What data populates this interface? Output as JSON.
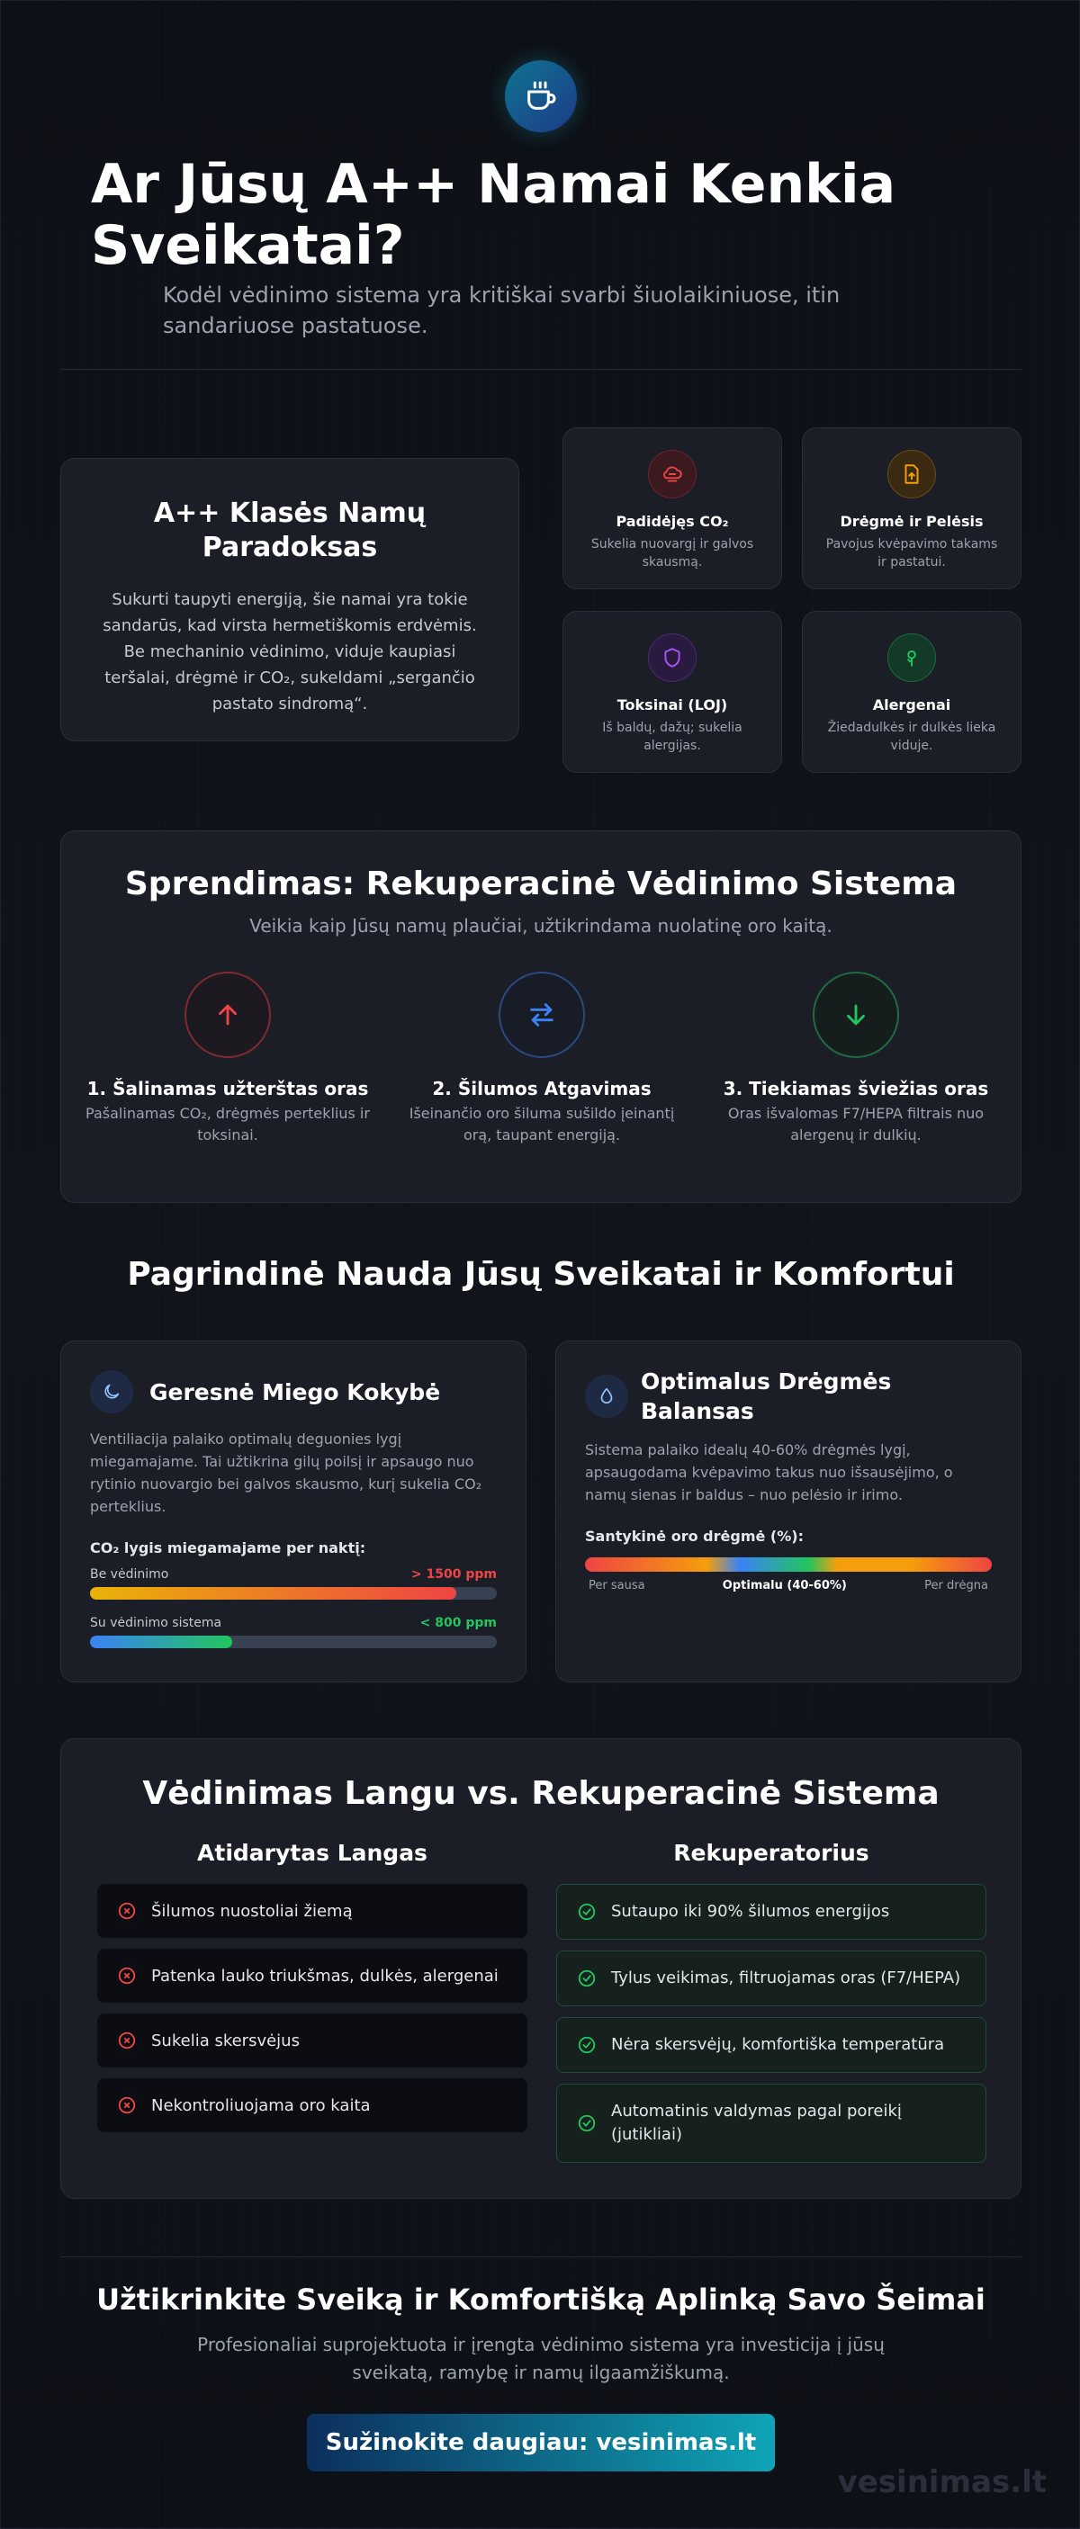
{
  "hero": {
    "title": "Ar Jūsų A++ Namai Kenkia Sveikatai?",
    "subtitle": "Kodėl vėdinimo sistema yra kritiškai svarbi šiuolaikiniuose, itin sandariuose pastatuose."
  },
  "paradox": {
    "title": "A++ Klasės Namų Paradoksas",
    "text": "Sukurti taupyti energiją, šie namai yra tokie sandarūs, kad virsta hermetiškomis erdvėmis. Be mechaninio vėdinimo, viduje kaupiasi teršalai, drėgmė ir CO₂, sukeldami „sergančio pastato sindromą“."
  },
  "problems": [
    {
      "title": "Padidėjęs CO₂",
      "desc": "Sukelia nuovargį ir galvos skausmą.",
      "icon": "co2-cloud-icon",
      "color": "#ef4444"
    },
    {
      "title": "Drėgmė ir Pelėsis",
      "desc": "Pavojus kvėpavimo takams ir pastatui.",
      "icon": "mold-file-icon",
      "color": "#f59e0b"
    },
    {
      "title": "Toksinai (LOJ)",
      "desc": "Iš baldų, dažų; sukelia alergijas.",
      "icon": "shield-icon",
      "color": "#a855f7"
    },
    {
      "title": "Alergenai",
      "desc": "Žiedadulkės ir dulkės lieka viduje.",
      "icon": "flower-icon",
      "color": "#22c55e"
    }
  ],
  "solution": {
    "title": "Sprendimas: Rekuperacinė Vėdinimo Sistema",
    "subtitle": "Veikia kaip Jūsų namų plaučiai, užtikrindama nuolatinę oro kaitą.",
    "steps": [
      {
        "title": "1. Šalinamas užterštas oras",
        "desc": "Pašalinamas CO₂, drėgmės perteklius ir toksinai.",
        "color": "#ef4444",
        "icon": "arrow-up-icon"
      },
      {
        "title": "2. Šilumos Atgavimas",
        "desc": "Išeinančio oro šiluma sušildo įeinantį orą, taupant energiją.",
        "color": "#3b82f6",
        "icon": "exchange-arrows-icon"
      },
      {
        "title": "3. Tiekiamas šviežias oras",
        "desc": "Oras išvalomas F7/HEPA filtrais nuo alergenų ir dulkių.",
        "color": "#22c55e",
        "icon": "arrow-down-icon"
      }
    ]
  },
  "benefits": {
    "heading": "Pagrindinė Nauda Jūsų Sveikatai ir Komfortui",
    "sleep": {
      "title": "Geresnė Miego Kokybė",
      "desc": "Ventiliacija palaiko optimalų deguonies lygį miegamajame. Tai užtikrina gilų poilsį ir apsaugo nuo rytinio nuovargio bei galvos skausmo, kurį sukelia CO₂ perteklius.",
      "label": "CO₂ lygis miegamajame per naktį:",
      "bars": [
        {
          "name": "Be vėdinimo",
          "value": "> 1500 ppm",
          "fill": 0.9,
          "color": "#ef4444"
        },
        {
          "name": "Su vėdinimo sistema",
          "value": "< 800 ppm",
          "fill": 0.35,
          "color": "#22c55e"
        }
      ]
    },
    "humidity": {
      "title": "Optimalus Drėgmės Balansas",
      "desc": "Sistema palaiko idealų 40-60% drėgmės lygį, apsaugodama kvėpavimo takus nuo išsausėjimo, o namų sienas ir baldus – nuo pelėsio ir irimo.",
      "label": "Santykinė oro drėgmė (%):",
      "scale": [
        "Per sausa",
        "Optimalu (40-60%)",
        "Per drėgna"
      ]
    }
  },
  "compare": {
    "title": "Vėdinimas Langu vs. Rekuperacinė Sistema",
    "left": {
      "title": "Atidarytas Langas",
      "items": [
        "Šilumos nuostoliai žiemą",
        "Patenka lauko triukšmas, dulkės, alergenai",
        "Sukelia skersvėjus",
        "Nekontroliuojama oro kaita"
      ]
    },
    "right": {
      "title": "Rekuperatorius",
      "items": [
        "Sutaupo iki 90% šilumos energijos",
        "Tylus veikimas, filtruojamas oras (F7/HEPA)",
        "Nėra skersvėjų, komfortiška temperatūra",
        "Automatinis valdymas pagal poreikį (jutikliai)"
      ]
    }
  },
  "cta": {
    "title": "Užtikrinkite Sveiką ir Komfortišką Aplinką Savo Šeimai",
    "text": "Profesionaliai suprojektuota ir įrengta vėdinimo sistema yra investicija į jūsų sveikatą, ramybę ir namų ilgaamžiškumą.",
    "button": "Sužinokite daugiau: vesinimas.lt"
  },
  "watermark": "vesinimas.lt",
  "colors": {
    "accent": "#0e7490",
    "bad": "#ef4444",
    "good": "#22c55e"
  }
}
